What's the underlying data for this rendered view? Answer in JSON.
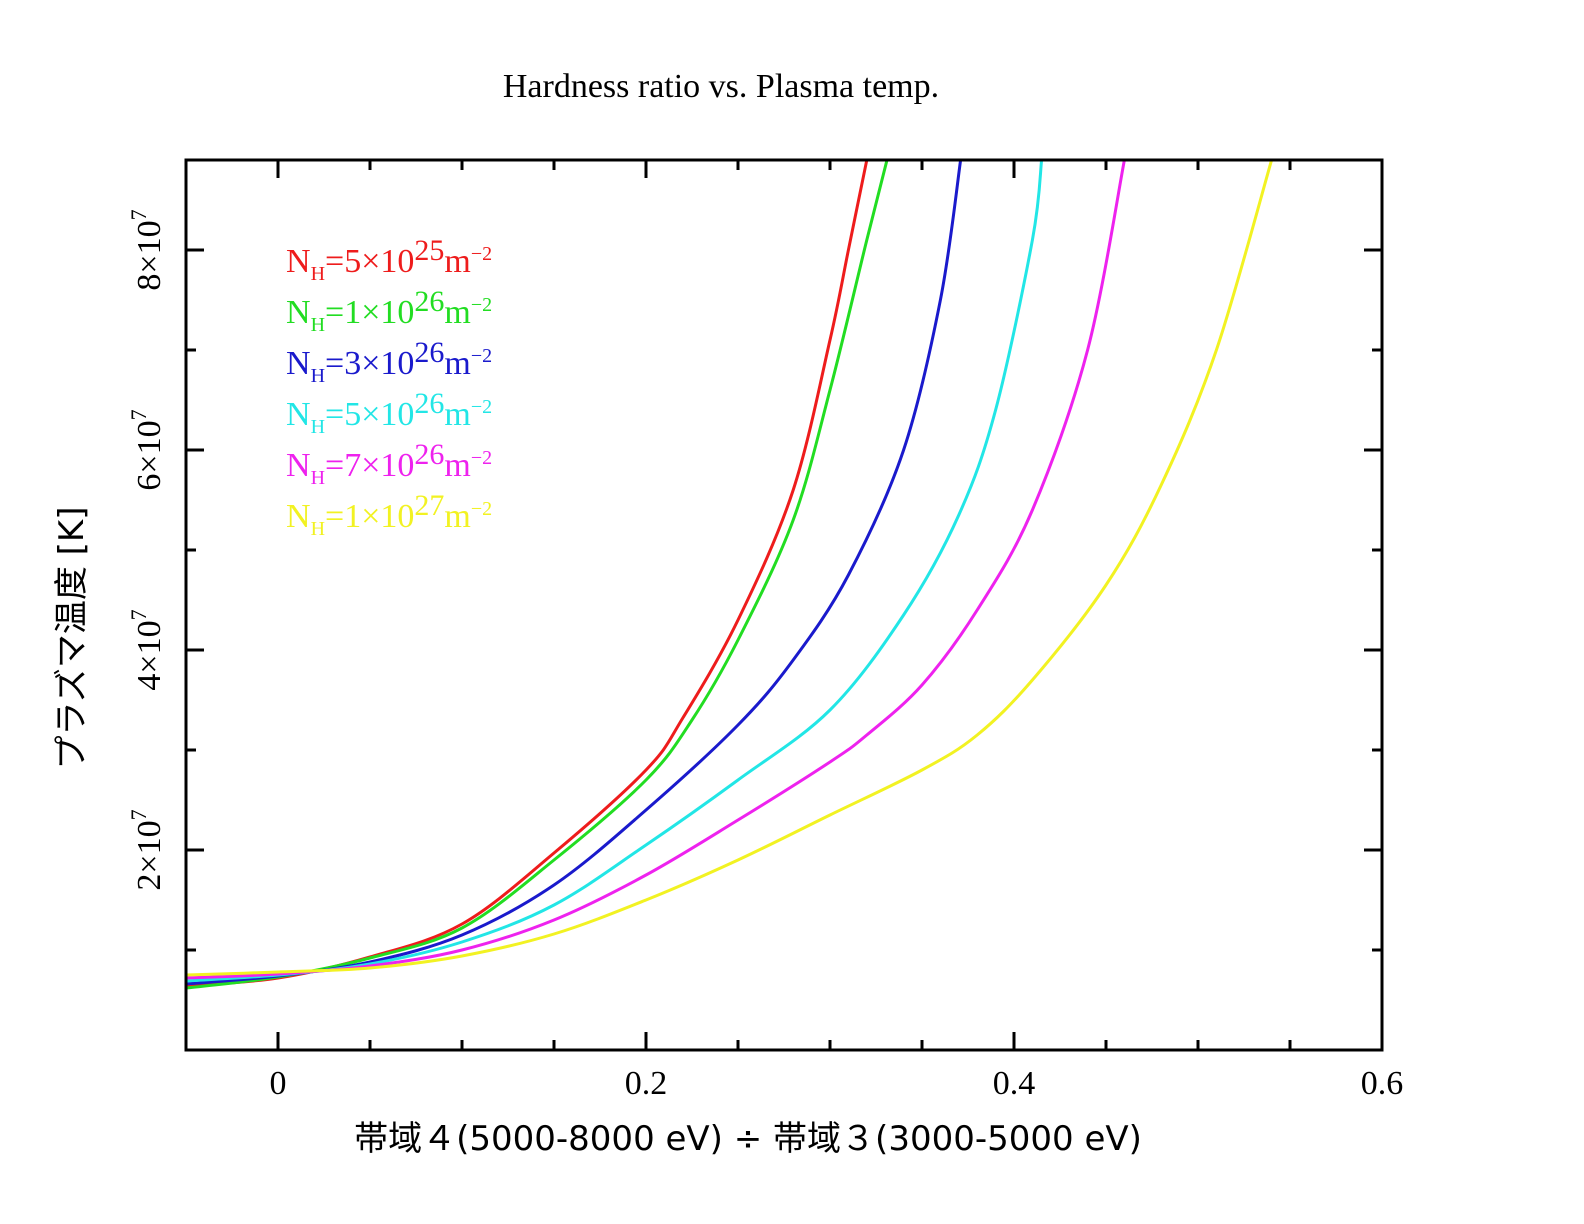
{
  "chart_data": {
    "type": "line",
    "title": "Hardness ratio vs. Plasma temp.",
    "xlabel": "帯域４(5000-8000 eV) ÷ 帯域３(3000-5000 eV)",
    "ylabel": "プラズマ温度 [K]",
    "xlim": [
      -0.05,
      0.6
    ],
    "ylim": [
      0,
      89000000
    ],
    "x_ticks": [
      {
        "value": 0,
        "label": "0"
      },
      {
        "value": 0.2,
        "label": "0.2"
      },
      {
        "value": 0.4,
        "label": "0.4"
      },
      {
        "value": 0.6,
        "label": "0.6"
      }
    ],
    "y_ticks": [
      {
        "value": 20000000,
        "mantissa": "2×10",
        "exp": "7"
      },
      {
        "value": 40000000,
        "mantissa": "4×10",
        "exp": "7"
      },
      {
        "value": 60000000,
        "mantissa": "6×10",
        "exp": "7"
      },
      {
        "value": 80000000,
        "mantissa": "8×10",
        "exp": "7"
      }
    ],
    "x_minor_step": 0.1,
    "y_minor_step": 10000000,
    "legend_position": "top-left",
    "series": [
      {
        "name": "NH=5×10^25 m^-2",
        "legend": {
          "base": "N",
          "sub": "H",
          "mid": "=5×10",
          "exp": "25",
          "unit": "m",
          "unit_exp": "−2"
        },
        "color": "#ee1c1c",
        "points": [
          [
            -0.05,
            6400000.0
          ],
          [
            0.0,
            7200000.0
          ],
          [
            0.05,
            9300000.0
          ],
          [
            0.1,
            12600000.0
          ],
          [
            0.15,
            19700000.0
          ],
          [
            0.2,
            28000000.0
          ],
          [
            0.22,
            33200000.0
          ],
          [
            0.25,
            43000000.0
          ],
          [
            0.28,
            56000000.0
          ],
          [
            0.3,
            71000000.0
          ],
          [
            0.31,
            80000000.0
          ],
          [
            0.32,
            89000000.0
          ]
        ]
      },
      {
        "name": "NH=1×10^26 m^-2",
        "legend": {
          "base": "N",
          "sub": "H",
          "mid": "=1×10",
          "exp": "26",
          "unit": "m",
          "unit_exp": "−2"
        },
        "color": "#22dd22",
        "points": [
          [
            -0.05,
            6200000.0
          ],
          [
            0.0,
            7300000.0
          ],
          [
            0.05,
            9200000.0
          ],
          [
            0.1,
            12200000.0
          ],
          [
            0.15,
            19000000.0
          ],
          [
            0.2,
            27000000.0
          ],
          [
            0.225,
            33000000.0
          ],
          [
            0.25,
            41000000.0
          ],
          [
            0.28,
            53000000.0
          ],
          [
            0.3,
            66000000.0
          ],
          [
            0.32,
            81000000.0
          ],
          [
            0.331,
            89000000.0
          ]
        ]
      },
      {
        "name": "NH=3×10^26 m^-2",
        "legend": {
          "base": "N",
          "sub": "H",
          "mid": "=3×10",
          "exp": "26",
          "unit": "m",
          "unit_exp": "−2"
        },
        "color": "#1a1acc",
        "points": [
          [
            -0.05,
            6600000.0
          ],
          [
            0.0,
            7400000.0
          ],
          [
            0.05,
            8800000.0
          ],
          [
            0.1,
            11500000.0
          ],
          [
            0.15,
            16500000.0
          ],
          [
            0.2,
            24000000.0
          ],
          [
            0.25,
            32500000.0
          ],
          [
            0.28,
            39000000.0
          ],
          [
            0.31,
            47500000.0
          ],
          [
            0.34,
            60000000.0
          ],
          [
            0.36,
            75000000.0
          ],
          [
            0.371,
            89000000.0
          ]
        ]
      },
      {
        "name": "NH=5×10^26 m^-2",
        "legend": {
          "base": "N",
          "sub": "H",
          "mid": "=5×10",
          "exp": "26",
          "unit": "m",
          "unit_exp": "−2"
        },
        "color": "#22e6e6",
        "points": [
          [
            -0.05,
            6900000.0
          ],
          [
            0.0,
            7500000.0
          ],
          [
            0.05,
            8600000.0
          ],
          [
            0.1,
            10800000.0
          ],
          [
            0.15,
            14500000.0
          ],
          [
            0.2,
            20500000.0
          ],
          [
            0.25,
            27000000.0
          ],
          [
            0.3,
            34000000.0
          ],
          [
            0.34,
            43500000.0
          ],
          [
            0.37,
            53500000.0
          ],
          [
            0.39,
            64000000.0
          ],
          [
            0.41,
            81000000.0
          ],
          [
            0.415,
            89000000.0
          ]
        ]
      },
      {
        "name": "NH=7×10^26 m^-2",
        "legend": {
          "base": "N",
          "sub": "H",
          "mid": "=7×10",
          "exp": "26",
          "unit": "m",
          "unit_exp": "−2"
        },
        "color": "#ee22ee",
        "points": [
          [
            -0.05,
            7200000.0
          ],
          [
            0.0,
            7600000.0
          ],
          [
            0.05,
            8400000.0
          ],
          [
            0.1,
            10000000.0
          ],
          [
            0.15,
            13000000.0
          ],
          [
            0.2,
            17500000.0
          ],
          [
            0.25,
            23000000.0
          ],
          [
            0.3,
            28800000.0
          ],
          [
            0.32,
            31500000.0
          ],
          [
            0.35,
            36500000.0
          ],
          [
            0.38,
            44000000.0
          ],
          [
            0.41,
            54000000.0
          ],
          [
            0.44,
            70000000.0
          ],
          [
            0.46,
            89000000.0
          ]
        ]
      },
      {
        "name": "NH=1×10^27 m^-2",
        "legend": {
          "base": "N",
          "sub": "H",
          "mid": "=1×10",
          "exp": "27",
          "unit": "m",
          "unit_exp": "−2"
        },
        "color": "#f2f222",
        "points": [
          [
            -0.05,
            7500000.0
          ],
          [
            0.0,
            7800000.0
          ],
          [
            0.05,
            8200000.0
          ],
          [
            0.1,
            9400000.0
          ],
          [
            0.15,
            11600000.0
          ],
          [
            0.2,
            15000000.0
          ],
          [
            0.25,
            19000000.0
          ],
          [
            0.3,
            23500000.0
          ],
          [
            0.35,
            28000000.0
          ],
          [
            0.38,
            31500000.0
          ],
          [
            0.41,
            37000000.0
          ],
          [
            0.45,
            46500000.0
          ],
          [
            0.48,
            56500000.0
          ],
          [
            0.51,
            70000000.0
          ],
          [
            0.54,
            89000000.0
          ]
        ]
      }
    ]
  }
}
